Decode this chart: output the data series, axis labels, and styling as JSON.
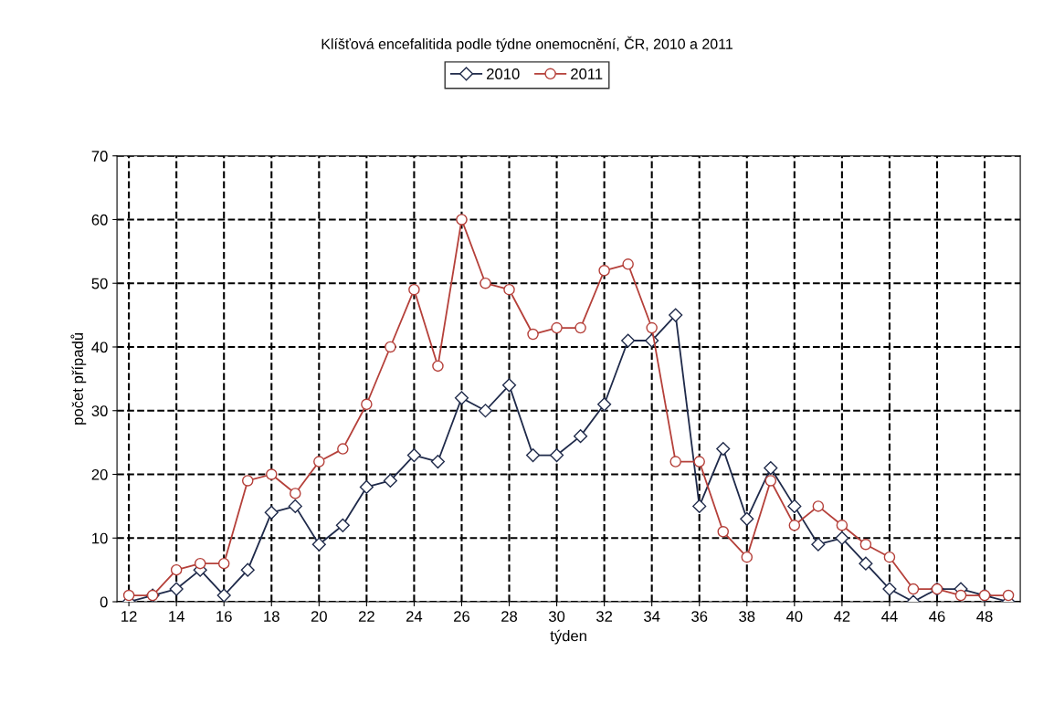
{
  "chart_data": {
    "type": "line",
    "title": "Klíšťová encefalitida podle týdne onemocnění, ČR, 2010 a 2011",
    "xlabel": "týden",
    "ylabel": "počet případů",
    "x": [
      12,
      13,
      14,
      15,
      16,
      17,
      18,
      19,
      20,
      21,
      22,
      23,
      24,
      25,
      26,
      27,
      28,
      29,
      30,
      31,
      32,
      33,
      34,
      35,
      36,
      37,
      38,
      39,
      40,
      41,
      42,
      43,
      44,
      45,
      46,
      47,
      48,
      49
    ],
    "series": [
      {
        "name": "2010",
        "color": "#1f2a4a",
        "marker": "diamond",
        "values": [
          0,
          1,
          2,
          5,
          1,
          5,
          14,
          15,
          9,
          12,
          18,
          19,
          23,
          22,
          32,
          30,
          34,
          23,
          23,
          26,
          31,
          41,
          41,
          45,
          15,
          24,
          13,
          21,
          15,
          9,
          10,
          6,
          2,
          0,
          2,
          2,
          1,
          0
        ]
      },
      {
        "name": "2011",
        "color": "#b5403a",
        "marker": "circle",
        "values": [
          1,
          1,
          5,
          6,
          6,
          19,
          20,
          17,
          22,
          24,
          31,
          40,
          49,
          37,
          60,
          50,
          49,
          42,
          43,
          43,
          52,
          53,
          43,
          22,
          22,
          11,
          7,
          19,
          12,
          15,
          12,
          9,
          7,
          2,
          2,
          1,
          1,
          1
        ]
      }
    ],
    "xlim": [
      11.5,
      49.5
    ],
    "xticks": [
      12,
      14,
      16,
      18,
      20,
      22,
      24,
      26,
      28,
      30,
      32,
      34,
      36,
      38,
      40,
      42,
      44,
      46,
      48
    ],
    "ylim": [
      0,
      70
    ],
    "yticks": [
      0,
      10,
      20,
      30,
      40,
      50,
      60,
      70
    ],
    "grid": true,
    "legend": "top",
    "line_style": "solid"
  }
}
